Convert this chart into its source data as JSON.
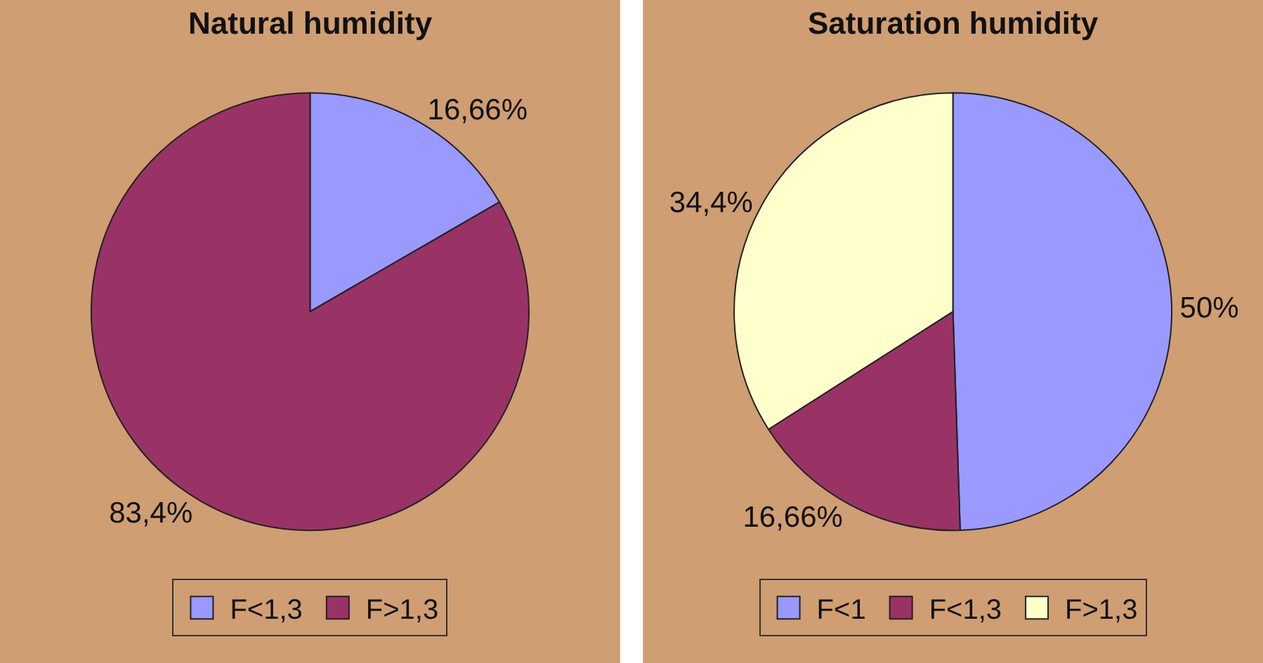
{
  "chart_data": [
    {
      "type": "pie",
      "title": "Natural humidity",
      "categories": [
        "F<1,3",
        "F>1,3"
      ],
      "values": [
        16.66,
        83.4
      ],
      "colors": [
        "#9999ff",
        "#993366"
      ],
      "value_labels": [
        "16,66%",
        "83,4%"
      ],
      "legend": "bottom"
    },
    {
      "type": "pie",
      "title": "Saturation humidity",
      "categories": [
        "F<1",
        "F<1,3",
        "F>1,3"
      ],
      "values": [
        50,
        16.66,
        34.4
      ],
      "colors": [
        "#9999ff",
        "#993366",
        "#ffffcc"
      ],
      "value_labels": [
        "50%",
        "16,66%",
        "34,4%"
      ],
      "legend": "bottom"
    }
  ]
}
